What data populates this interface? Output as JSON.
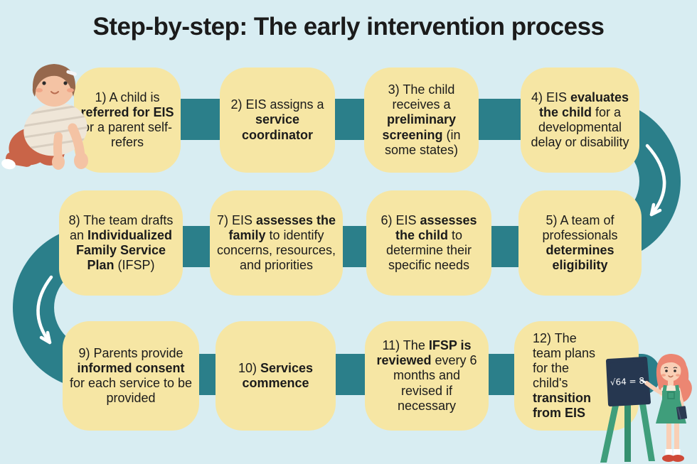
{
  "title": "Step-by-step: The early intervention process",
  "colors": {
    "background": "#d8edf2",
    "box": "#f6e6a4",
    "connector": "#2b7f8a",
    "text": "#1b1b1b",
    "arrow": "#ffffff"
  },
  "steps": [
    {
      "number": "1",
      "segments": [
        {
          "t": "1) A child is ",
          "b": false
        },
        {
          "t": "referred for EIS",
          "b": true
        },
        {
          "t": " or a parent self-refers",
          "b": false
        }
      ]
    },
    {
      "number": "2",
      "segments": [
        {
          "t": "2) EIS assigns a ",
          "b": false
        },
        {
          "t": "service coordinator",
          "b": true
        }
      ]
    },
    {
      "number": "3",
      "segments": [
        {
          "t": "3) The child receives a ",
          "b": false
        },
        {
          "t": "preliminary screening",
          "b": true
        },
        {
          "t": " (in some states)",
          "b": false
        }
      ]
    },
    {
      "number": "4",
      "segments": [
        {
          "t": "4) EIS ",
          "b": false
        },
        {
          "t": "evaluates the child",
          "b": true
        },
        {
          "t": " for a developmental delay or disability",
          "b": false
        }
      ]
    },
    {
      "number": "5",
      "segments": [
        {
          "t": "5) A team of professionals ",
          "b": false
        },
        {
          "t": "determines eligibility",
          "b": true
        }
      ]
    },
    {
      "number": "6",
      "segments": [
        {
          "t": "6) EIS ",
          "b": false
        },
        {
          "t": "assesses the child",
          "b": true
        },
        {
          "t": " to determine their specific needs",
          "b": false
        }
      ]
    },
    {
      "number": "7",
      "segments": [
        {
          "t": "7) EIS ",
          "b": false
        },
        {
          "t": "assesses the family",
          "b": true
        },
        {
          "t": " to identify concerns, resources, and priorities",
          "b": false
        }
      ]
    },
    {
      "number": "8",
      "segments": [
        {
          "t": "8) The team drafts an ",
          "b": false
        },
        {
          "t": "Individualized Family Service Plan",
          "b": true
        },
        {
          "t": " (IFSP)",
          "b": false
        }
      ]
    },
    {
      "number": "9",
      "segments": [
        {
          "t": "9) Parents provide ",
          "b": false
        },
        {
          "t": "informed consent",
          "b": true
        },
        {
          "t": " for each service to be provided",
          "b": false
        }
      ]
    },
    {
      "number": "10",
      "segments": [
        {
          "t": "10) ",
          "b": false
        },
        {
          "t": "Services commence",
          "b": true
        }
      ]
    },
    {
      "number": "11",
      "segments": [
        {
          "t": "11) The ",
          "b": false
        },
        {
          "t": "IFSP is reviewed",
          "b": true
        },
        {
          "t": " every 6 months and revised if necessary",
          "b": false
        }
      ]
    },
    {
      "number": "12",
      "segments": [
        {
          "t": "12) The team plans for the child's ",
          "b": false
        },
        {
          "t": "transition from EIS",
          "b": true
        }
      ]
    }
  ],
  "illustrations": {
    "baby": "crawling toddler",
    "girl": "girl writing at a chalkboard easel",
    "chalkboard_text": "√64 = 8"
  }
}
